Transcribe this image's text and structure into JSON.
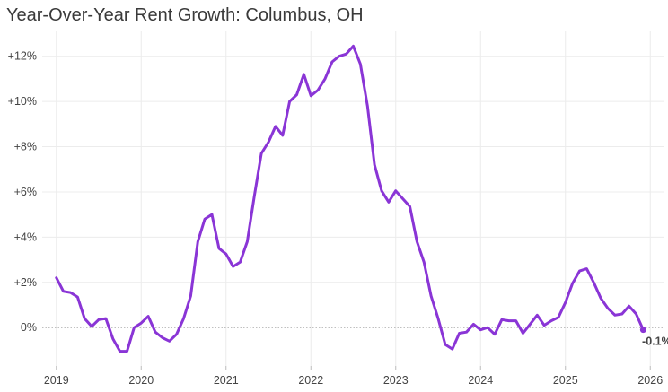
{
  "chart_data": {
    "type": "line",
    "title": "Year-Over-Year Rent Growth: Columbus, OH",
    "xlabel": "",
    "ylabel": "",
    "x_ticks": [
      "2019",
      "2020",
      "2021",
      "2022",
      "2023",
      "2024",
      "2025",
      "2026"
    ],
    "y_ticks": [
      "0%",
      "+2%",
      "+4%",
      "+6%",
      "+8%",
      "+10%",
      "+12%"
    ],
    "ylim": [
      -1.7,
      13.1
    ],
    "xlim": [
      "2018-11",
      "2026-03"
    ],
    "grid": true,
    "line_color": "#8a35d6",
    "end_label": "-0.1%",
    "x": [
      "2019-01",
      "2019-02",
      "2019-03",
      "2019-04",
      "2019-05",
      "2019-06",
      "2019-07",
      "2019-08",
      "2019-09",
      "2019-10",
      "2019-11",
      "2019-12",
      "2020-01",
      "2020-02",
      "2020-03",
      "2020-04",
      "2020-05",
      "2020-06",
      "2020-07",
      "2020-08",
      "2020-09",
      "2020-10",
      "2020-11",
      "2020-12",
      "2021-01",
      "2021-02",
      "2021-03",
      "2021-04",
      "2021-05",
      "2021-06",
      "2021-07",
      "2021-08",
      "2021-09",
      "2021-10",
      "2021-11",
      "2021-12",
      "2022-01",
      "2022-02",
      "2022-03",
      "2022-04",
      "2022-05",
      "2022-06",
      "2022-07",
      "2022-08",
      "2022-09",
      "2022-10",
      "2022-11",
      "2022-12",
      "2023-01",
      "2023-02",
      "2023-03",
      "2023-04",
      "2023-05",
      "2023-06",
      "2023-07",
      "2023-08",
      "2023-09",
      "2023-10",
      "2023-11",
      "2023-12",
      "2024-01",
      "2024-02",
      "2024-03",
      "2024-04",
      "2024-05",
      "2024-06",
      "2024-07",
      "2024-08",
      "2024-09",
      "2024-10",
      "2024-11",
      "2024-12",
      "2025-01",
      "2025-02",
      "2025-03",
      "2025-04",
      "2025-05",
      "2025-06",
      "2025-07",
      "2025-08",
      "2025-09",
      "2025-10",
      "2025-11",
      "2025-12"
    ],
    "values": [
      2.2,
      1.6,
      1.55,
      1.35,
      0.4,
      0.05,
      0.35,
      0.4,
      -0.5,
      -1.05,
      -1.05,
      0.0,
      0.2,
      0.5,
      -0.2,
      -0.45,
      -0.6,
      -0.3,
      0.4,
      1.4,
      3.8,
      4.8,
      5.0,
      3.5,
      3.25,
      2.7,
      2.9,
      3.8,
      5.8,
      7.7,
      8.2,
      8.9,
      8.5,
      10.0,
      10.3,
      11.2,
      10.25,
      10.5,
      11.0,
      11.75,
      12.0,
      12.1,
      12.45,
      11.65,
      9.8,
      7.2,
      6.05,
      5.55,
      6.05,
      5.7,
      5.35,
      3.8,
      2.9,
      1.4,
      0.4,
      -0.75,
      -0.95,
      -0.25,
      -0.2,
      0.15,
      -0.1,
      0.0,
      -0.3,
      0.35,
      0.3,
      0.3,
      -0.25,
      0.15,
      0.55,
      0.1,
      0.3,
      0.45,
      1.1,
      1.95,
      2.5,
      2.6,
      2.0,
      1.3,
      0.85,
      0.55,
      0.6,
      0.95,
      0.6,
      -0.1
    ]
  }
}
